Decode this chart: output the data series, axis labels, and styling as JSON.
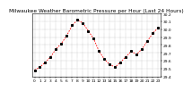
{
  "title": "Milwaukee Weather Barometric Pressure per Hour (Last 24 Hours)",
  "hours": [
    0,
    1,
    2,
    3,
    4,
    5,
    6,
    7,
    8,
    9,
    10,
    11,
    12,
    13,
    14,
    15,
    16,
    17,
    18,
    19,
    20,
    21,
    22,
    23
  ],
  "pressure": [
    29.48,
    29.52,
    29.58,
    29.65,
    29.75,
    29.82,
    29.92,
    30.05,
    30.12,
    30.08,
    29.98,
    29.88,
    29.72,
    29.62,
    29.55,
    29.52,
    29.58,
    29.65,
    29.72,
    29.68,
    29.75,
    29.85,
    29.95,
    30.02
  ],
  "ylim_min": 29.4,
  "ylim_max": 30.2,
  "line_color": "#ff0000",
  "marker_color": "#000000",
  "bg_color": "#ffffff",
  "plot_bg_color": "#ffffff",
  "grid_color": "#888888",
  "title_fontsize": 4.2,
  "tick_fontsize": 3.2,
  "ytick_values": [
    29.4,
    29.5,
    29.6,
    29.7,
    29.8,
    29.9,
    30.0,
    30.1,
    30.2
  ],
  "ytick_labels": [
    "29.4",
    "29.5",
    "29.6",
    "29.7",
    "29.8",
    "29.9",
    "30.0",
    "30.1",
    "30.2"
  ],
  "xtick_every": 1,
  "vgrid_positions": [
    0,
    1,
    2,
    3,
    4,
    5,
    6,
    7,
    8,
    9,
    10,
    11,
    12,
    13,
    14,
    15,
    16,
    17,
    18,
    19,
    20,
    21,
    22,
    23
  ]
}
